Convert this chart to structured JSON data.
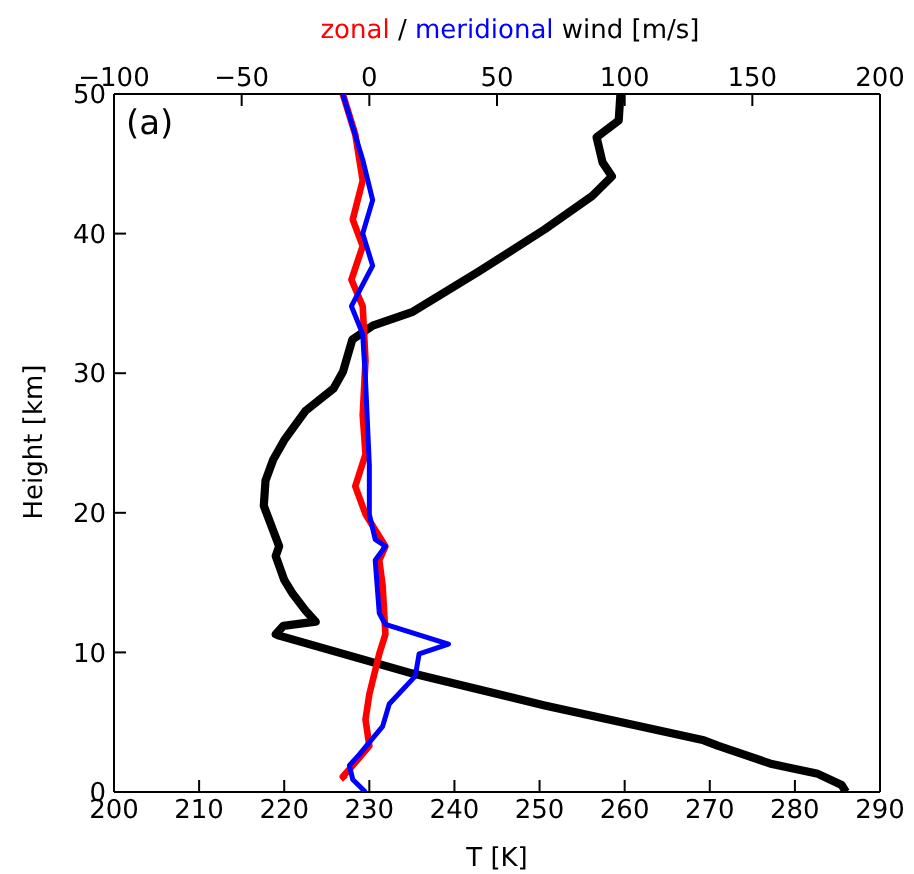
{
  "chart_data": {
    "type": "line",
    "xlabel": "T [K]",
    "x2label": "wind [m/s]",
    "ylabel": "Height [km]",
    "annotations": [
      "(a)",
      "/"
    ],
    "xlim": [
      200,
      290
    ],
    "xticks": [
      200,
      210,
      220,
      230,
      240,
      250,
      260,
      270,
      280,
      290
    ],
    "x2lim": [
      -100,
      200
    ],
    "x2ticks": [
      {
        "value": -100,
        "label": "−100"
      },
      {
        "value": -50,
        "label": "−50"
      },
      0,
      50,
      100,
      150,
      200
    ],
    "ylim": [
      0,
      50
    ],
    "yticks": [
      0,
      10,
      20,
      30,
      40,
      50
    ],
    "marker": "none",
    "line_style": "solid",
    "series": [
      {
        "color": "#000000",
        "x": [
          286,
          285.5,
          282.7,
          277.3,
          271,
          269.3,
          250.6,
          235,
          219.4,
          219,
          219.9,
          223.7,
          222.5,
          221,
          220,
          219,
          219.4,
          217.6,
          217.8,
          218.7,
          220,
          222.5,
          225.8,
          226.9,
          228,
          230.4,
          235.1,
          242.9,
          250.6,
          256.2,
          258.5,
          257.4,
          256.7,
          259.3,
          259.5
        ],
        "values": [
          0,
          0.5,
          1.3,
          2,
          3.3,
          3.7,
          6.2,
          8.5,
          11.2,
          11.3,
          11.9,
          12.2,
          13,
          14.2,
          15.2,
          16.9,
          17.6,
          20.5,
          22.3,
          23.8,
          25.2,
          27.3,
          28.9,
          30.1,
          32.4,
          33.4,
          34.4,
          37.3,
          40.3,
          42.7,
          44.1,
          45.1,
          46.9,
          48.1,
          50
        ]
      },
      {
        "name": "zonal",
        "color": "#ff0000",
        "axis": "x2",
        "x": [
          -9.4,
          -10.4,
          -6.5,
          0,
          -1.5,
          0,
          3.9,
          6.3,
          5.2,
          3.9,
          6.3,
          -1.5,
          -5.5,
          -1.5,
          -2.6,
          -1.5,
          -2.6,
          -7,
          -2.6,
          -6.5,
          -2.6,
          -5.5,
          -10.4
        ],
        "values": [
          0.9,
          1.1,
          1.9,
          3.3,
          5.2,
          7,
          9.9,
          11.3,
          14.8,
          16.6,
          17.6,
          19.9,
          21.9,
          24.2,
          27,
          30.9,
          34.8,
          36.7,
          39.1,
          41,
          43.8,
          47.1,
          50
        ]
      },
      {
        "name": "meridional",
        "color": "#0000ff",
        "axis": "x2",
        "x": [
          -1.5,
          -6.5,
          -7.8,
          -3.9,
          5.2,
          7.8,
          18,
          19.5,
          31,
          6.3,
          3.9,
          2.3,
          6.3,
          2.3,
          0,
          0,
          -1.5,
          -2.6,
          -7,
          1.3,
          -2.6,
          1.3,
          -2.6,
          -10.4
        ],
        "values": [
          0,
          0.9,
          1.9,
          2.7,
          4.7,
          6.3,
          8.3,
          9.9,
          10.6,
          12,
          12.8,
          16.6,
          17.6,
          18.1,
          19.9,
          23.4,
          29.5,
          32.8,
          34.8,
          37.7,
          40,
          42.4,
          45.3,
          50
        ]
      }
    ]
  }
}
